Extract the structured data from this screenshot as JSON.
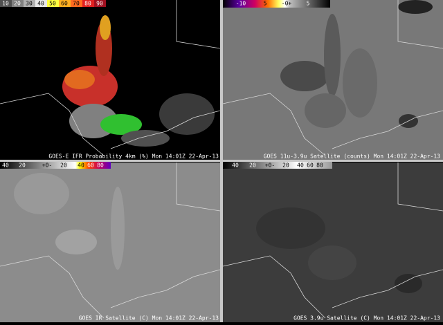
{
  "panels": [
    {
      "caption": "GOES-E IFR Probability 4km (%) Mon 14:01Z 22-Apr-13",
      "colorbar": [
        "10",
        "20",
        "30",
        "40",
        "50",
        "60",
        "70",
        "80",
        "90"
      ]
    },
    {
      "caption": "GOES 11u-3.9u Satellite (counts) Mon 14:01Z 22-Apr-13",
      "colorbar": [
        "-10",
        "5",
        "-0+",
        "5"
      ]
    },
    {
      "caption": "GOES IR Satellite (C) Mon 14:01Z 22-Apr-13",
      "colorbar": [
        "40",
        "20",
        "+0-",
        "20",
        "40",
        "60",
        "80"
      ]
    },
    {
      "caption": "GOES 3.9u Satellite (C) Mon 14:01Z 22-Apr-13",
      "colorbar": [
        "40",
        "20",
        "+0-",
        "20",
        "40",
        "60",
        "80"
      ]
    }
  ]
}
